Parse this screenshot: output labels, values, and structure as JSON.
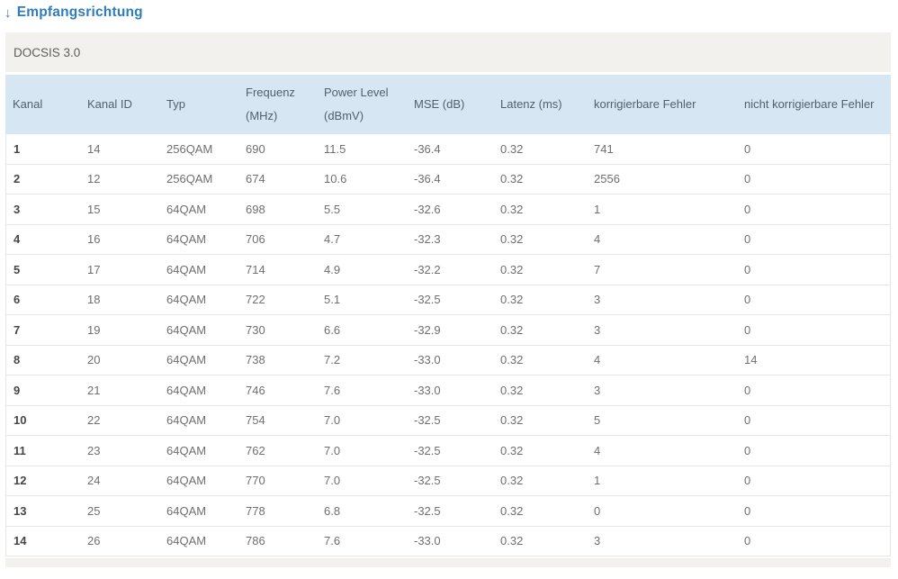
{
  "header": {
    "arrow_icon": "↓",
    "title": "Empfangsrichtung"
  },
  "panel": {
    "subheader": "DOCSIS 3.0"
  },
  "table": {
    "columns": [
      {
        "key": "kanal",
        "label": "Kanal"
      },
      {
        "key": "kanal-id",
        "label": "Kanal ID"
      },
      {
        "key": "typ",
        "label": "Typ"
      },
      {
        "key": "frequenz-mhz",
        "label": "Frequenz (MHz)"
      },
      {
        "key": "power-level-dbmv",
        "label": "Power Level (dBmV)"
      },
      {
        "key": "mse-db",
        "label": "MSE (dB)"
      },
      {
        "key": "latenz-ms",
        "label": "Latenz (ms)"
      },
      {
        "key": "korrigierbare-fehler",
        "label": "korrigierbare Fehler"
      },
      {
        "key": "nicht-korrigierbare-fehler",
        "label": "nicht korrigierbare Fehler"
      }
    ],
    "rows": [
      [
        "1",
        "14",
        "256QAM",
        "690",
        "11.5",
        "-36.4",
        "0.32",
        "741",
        "0"
      ],
      [
        "2",
        "12",
        "256QAM",
        "674",
        "10.6",
        "-36.4",
        "0.32",
        "2556",
        "0"
      ],
      [
        "3",
        "15",
        "64QAM",
        "698",
        "5.5",
        "-32.6",
        "0.32",
        "1",
        "0"
      ],
      [
        "4",
        "16",
        "64QAM",
        "706",
        "4.7",
        "-32.3",
        "0.32",
        "4",
        "0"
      ],
      [
        "5",
        "17",
        "64QAM",
        "714",
        "4.9",
        "-32.2",
        "0.32",
        "7",
        "0"
      ],
      [
        "6",
        "18",
        "64QAM",
        "722",
        "5.1",
        "-32.5",
        "0.32",
        "3",
        "0"
      ],
      [
        "7",
        "19",
        "64QAM",
        "730",
        "6.6",
        "-32.9",
        "0.32",
        "3",
        "0"
      ],
      [
        "8",
        "20",
        "64QAM",
        "738",
        "7.2",
        "-33.0",
        "0.32",
        "4",
        "14"
      ],
      [
        "9",
        "21",
        "64QAM",
        "746",
        "7.6",
        "-33.0",
        "0.32",
        "3",
        "0"
      ],
      [
        "10",
        "22",
        "64QAM",
        "754",
        "7.0",
        "-32.5",
        "0.32",
        "5",
        "0"
      ],
      [
        "11",
        "23",
        "64QAM",
        "762",
        "7.0",
        "-32.5",
        "0.32",
        "4",
        "0"
      ],
      [
        "12",
        "24",
        "64QAM",
        "770",
        "7.0",
        "-32.5",
        "0.32",
        "1",
        "0"
      ],
      [
        "13",
        "25",
        "64QAM",
        "778",
        "6.8",
        "-32.5",
        "0.32",
        "0",
        "0"
      ],
      [
        "14",
        "26",
        "64QAM",
        "786",
        "7.6",
        "-33.0",
        "0.32",
        "3",
        "0"
      ]
    ]
  },
  "colors": {
    "title_blue": "#2f7cbb",
    "table_header_bg": "#d7e6f3",
    "table_header_text": "#51616e",
    "section_strip_bg": "#f2f1ee",
    "row_border": "#e6e6e6",
    "cell_text": "#6f6f6f",
    "first_col_text": "#464646"
  }
}
